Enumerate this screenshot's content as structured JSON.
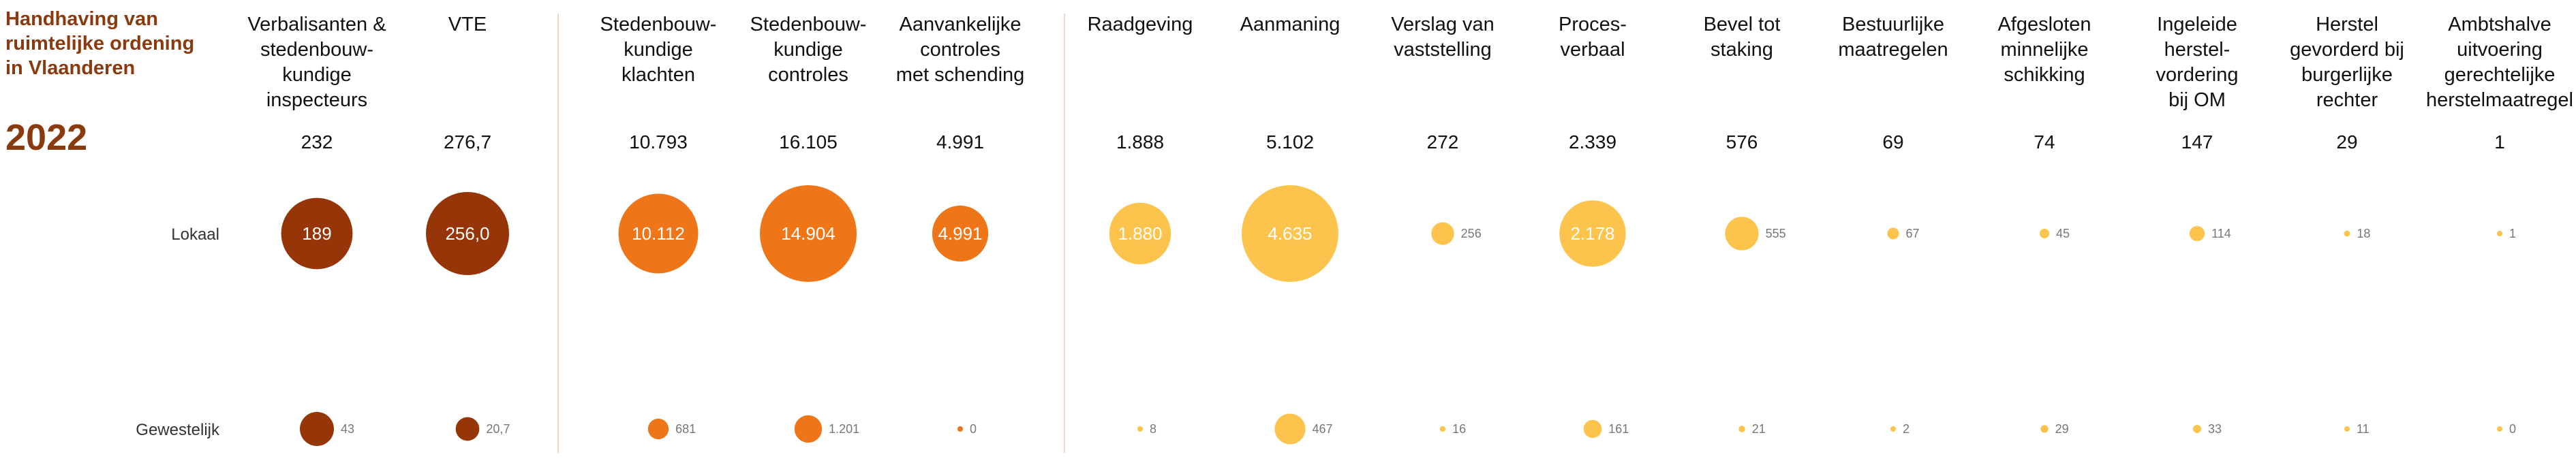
{
  "chart_data": {
    "type": "bubble",
    "title": "Handhaving van ruimtelijke ordening in Vlaanderen",
    "title_lines": [
      "Handhaving van",
      "ruimtelijke ordening",
      "in Vlaanderen"
    ],
    "year": "2022",
    "rows": [
      "Lokaal",
      "Gewestelijk"
    ],
    "decimal_separator": ",",
    "groups": [
      {
        "name": "inspectors",
        "color": "#963508",
        "columns": [
          0,
          1
        ]
      },
      {
        "name": "complaints-controls",
        "color": "#ee7518",
        "columns": [
          2,
          3,
          4
        ]
      },
      {
        "name": "actions",
        "color": "#fcc44c",
        "columns": [
          5,
          6,
          7,
          8,
          9,
          10,
          11,
          12,
          13,
          14
        ]
      }
    ],
    "columns": [
      {
        "label": [
          "Verbalisanten &",
          "stedenbouw-",
          "kundige",
          "inspecteurs"
        ],
        "total": "232",
        "local": 189,
        "regional": 43,
        "local_label": "189",
        "regional_label": "43"
      },
      {
        "label": [
          "VTE"
        ],
        "total": "276,7",
        "local": 256.0,
        "regional": 20.7,
        "local_label": "256,0",
        "regional_label": "20,7"
      },
      {
        "label": [
          "Stedenbouw-",
          "kundige",
          "klachten"
        ],
        "total": "10.793",
        "local": 10112,
        "regional": 681,
        "local_label": "10.112",
        "regional_label": "681"
      },
      {
        "label": [
          "Stedenbouw-",
          "kundige",
          "controles"
        ],
        "total": "16.105",
        "local": 14904,
        "regional": 1201,
        "local_label": "14.904",
        "regional_label": "1.201"
      },
      {
        "label": [
          "Aanvankelijke",
          "controles",
          "met schending"
        ],
        "total": "4.991",
        "local": 4991,
        "regional": 0,
        "local_label": "4.991",
        "regional_label": "0"
      },
      {
        "label": [
          "Raadgeving"
        ],
        "total": "1.888",
        "local": 1880,
        "regional": 8,
        "local_label": "1.880",
        "regional_label": "8"
      },
      {
        "label": [
          "Aanmaning"
        ],
        "total": "5.102",
        "local": 4635,
        "regional": 467,
        "local_label": "4.635",
        "regional_label": "467"
      },
      {
        "label": [
          "Verslag van",
          "vaststelling"
        ],
        "total": "272",
        "local": 256,
        "regional": 16,
        "local_label": "256",
        "regional_label": "16"
      },
      {
        "label": [
          "Proces-",
          "verbaal"
        ],
        "total": "2.339",
        "local": 2178,
        "regional": 161,
        "local_label": "2.178",
        "regional_label": "161"
      },
      {
        "label": [
          "Bevel tot",
          "staking"
        ],
        "total": "576",
        "local": 555,
        "regional": 21,
        "local_label": "555",
        "regional_label": "21"
      },
      {
        "label": [
          "Bestuurlijke",
          "maatregelen"
        ],
        "total": "69",
        "local": 67,
        "regional": 2,
        "local_label": "67",
        "regional_label": "2"
      },
      {
        "label": [
          "Afgesloten",
          "minnelijke",
          "schikking"
        ],
        "total": "74",
        "local": 45,
        "regional": 29,
        "local_label": "45",
        "regional_label": "29"
      },
      {
        "label": [
          "Ingeleide",
          "herstel-",
          "vordering",
          "bij OM"
        ],
        "total": "147",
        "local": 114,
        "regional": 33,
        "local_label": "114",
        "regional_label": "33"
      },
      {
        "label": [
          "Herstel",
          "gevorderd bij",
          "burgerlijke",
          "rechter"
        ],
        "total": "29",
        "local": 18,
        "regional": 11,
        "local_label": "18",
        "regional_label": "11"
      },
      {
        "label": [
          "Ambtshalve",
          "uitvoering",
          "gerechtelijke",
          "herstelmaatregel"
        ],
        "total": "1",
        "local": 1,
        "regional": 0,
        "local_label": "1",
        "regional_label": "0"
      }
    ]
  }
}
